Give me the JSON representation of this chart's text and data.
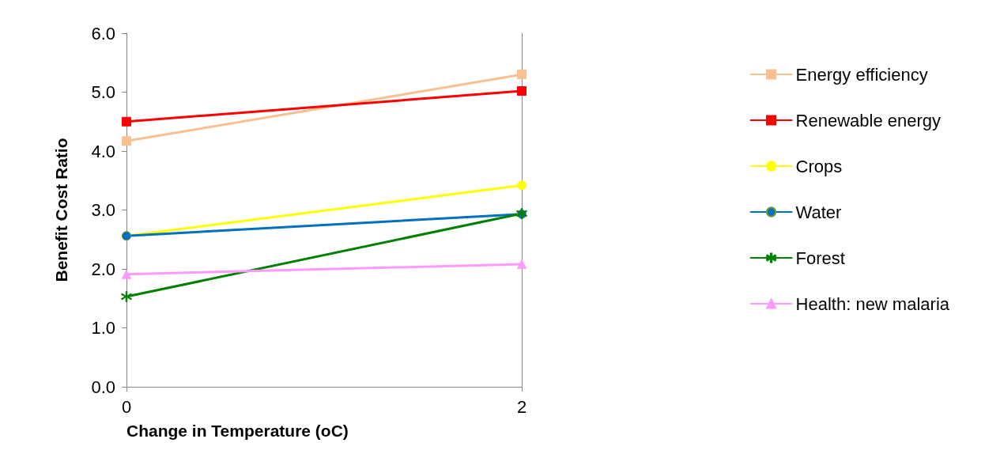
{
  "chart_data": {
    "type": "line",
    "xlabel": "Change in Temperature (oC)",
    "ylabel": "Benefit Cost Ratio",
    "x": [
      0,
      2
    ],
    "xlim": [
      0,
      2
    ],
    "xticks": [
      0,
      2
    ],
    "ylim": [
      0,
      6
    ],
    "yticks": [
      {
        "value": 0,
        "label": "0.0"
      },
      {
        "value": 1,
        "label": "1.0"
      },
      {
        "value": 2,
        "label": "2.0"
      },
      {
        "value": 3,
        "label": "3.0"
      },
      {
        "value": 4,
        "label": "4.0"
      },
      {
        "value": 5,
        "label": "5.0"
      },
      {
        "value": 6,
        "label": "6.0"
      }
    ],
    "legend": "right",
    "line_style": "solid",
    "series": [
      {
        "name": "Energy efficiency",
        "color": "#fac090",
        "marker": "square",
        "values": [
          4.17,
          5.3
        ]
      },
      {
        "name": "Renewable energy",
        "color": "#ff0000",
        "marker": "square",
        "values": [
          4.5,
          5.02
        ]
      },
      {
        "name": "Crops",
        "color": "#ffff00",
        "marker": "circle",
        "values": [
          2.56,
          3.42
        ]
      },
      {
        "name": "Water",
        "color": "#0070c0",
        "marker": "circle",
        "values": [
          2.56,
          2.93
        ]
      },
      {
        "name": "Forest",
        "color": "#008000",
        "marker": "cross",
        "values": [
          1.53,
          2.94
        ]
      },
      {
        "name": "Health: new malaria",
        "color": "#ff99ff",
        "marker": "triangle",
        "values": [
          1.91,
          2.08
        ]
      }
    ]
  }
}
